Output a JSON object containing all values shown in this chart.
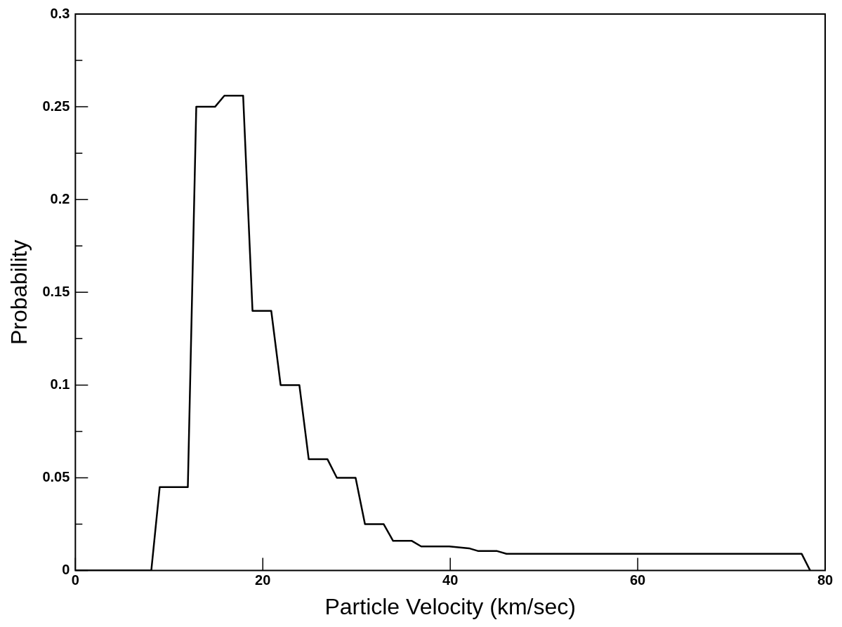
{
  "chart_data": {
    "type": "line",
    "xlabel": "Particle Velocity (km/sec)",
    "ylabel": "Probability",
    "color": "#000000",
    "x": [
      0,
      8.1,
      9.0,
      12.0,
      12.9,
      14.9,
      15.9,
      17.9,
      18.9,
      20.9,
      21.9,
      23.9,
      24.9,
      26.9,
      27.9,
      29.9,
      30.9,
      32.9,
      33.9,
      35.9,
      36.9,
      39.9,
      42.0,
      43.0,
      45.0,
      46.0,
      77.5,
      78.4
    ],
    "values": [
      0,
      0,
      0.045,
      0.045,
      0.25,
      0.25,
      0.256,
      0.256,
      0.14,
      0.14,
      0.1,
      0.1,
      0.06,
      0.06,
      0.05,
      0.05,
      0.025,
      0.025,
      0.016,
      0.016,
      0.013,
      0.013,
      0.012,
      0.0105,
      0.0105,
      0.009,
      0.009,
      0
    ],
    "xlim": [
      0,
      80
    ],
    "xticks": [
      0,
      20,
      40,
      60,
      80
    ],
    "ylim": [
      0,
      0.3
    ],
    "yticks": [
      0,
      {
        "value": 0.025,
        "label": null
      },
      0.05,
      {
        "value": 0.075,
        "label": null
      },
      0.1,
      {
        "value": 0.125,
        "label": null
      },
      0.15,
      {
        "value": 0.175,
        "label": null
      },
      0.2,
      {
        "value": 0.225,
        "label": null
      },
      0.25,
      {
        "value": 0.275,
        "label": null
      },
      0.3
    ],
    "grid": false,
    "legend": false,
    "marker": "none",
    "line_style": "solid"
  }
}
